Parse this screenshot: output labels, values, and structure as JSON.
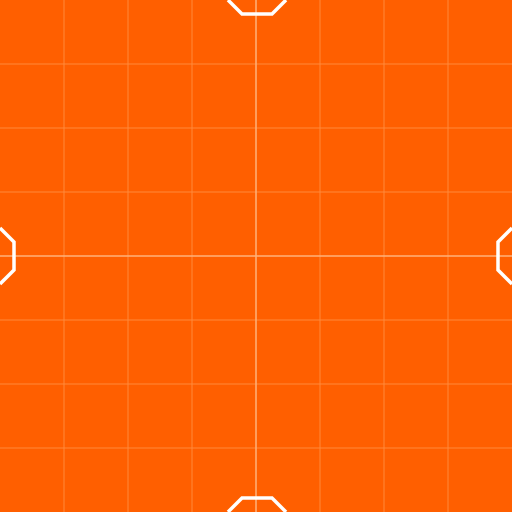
{
  "colors": {
    "background": "#FF5F00",
    "grid_line": "#FF8A3A",
    "center_line": "#FFB27A",
    "edge_marker": "#FFFFFF"
  },
  "grid": {
    "divisions": 8,
    "center_lines": true
  },
  "edge_markers": {
    "icon": "octagon-notch-icon",
    "positions": [
      "top",
      "bottom",
      "left",
      "right"
    ]
  }
}
